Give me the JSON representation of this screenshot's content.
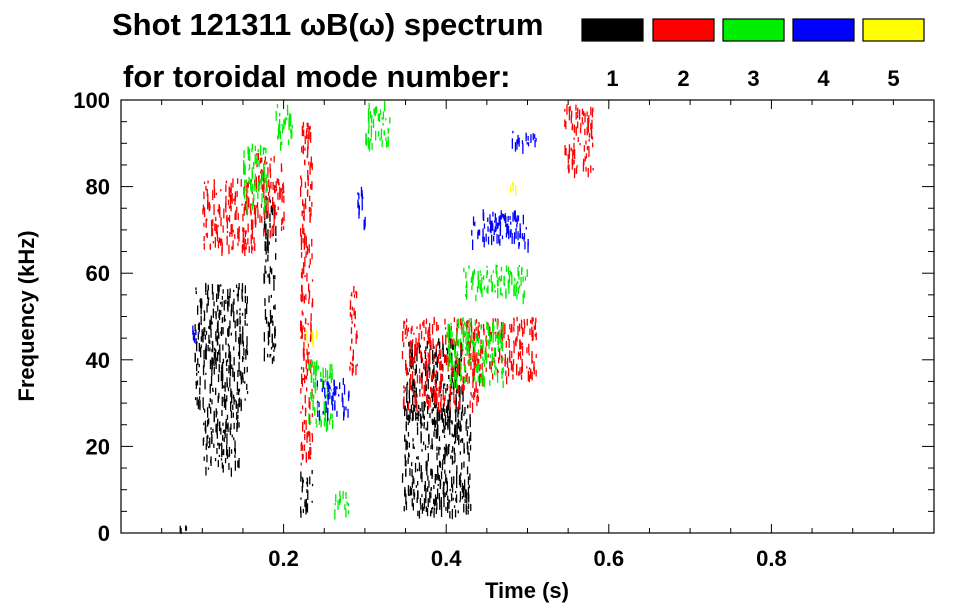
{
  "chart_data": {
    "type": "heatmap",
    "title_line1": "Shot 121311 ωB(ω) spectrum",
    "title_line2": "for toroidal mode number:",
    "xlabel": "Time (s)",
    "ylabel": "Frequency (kHz)",
    "xlim": [
      0.0,
      1.0
    ],
    "ylim": [
      0,
      100
    ],
    "x_ticks": [
      0.2,
      0.4,
      0.6,
      0.8
    ],
    "x_tick_labels": [
      "0.2",
      "0.4",
      "0.6",
      "0.8"
    ],
    "y_ticks": [
      0,
      20,
      40,
      60,
      80,
      100
    ],
    "y_tick_labels": [
      "0",
      "20",
      "40",
      "60",
      "80",
      "100"
    ],
    "grid": false,
    "legend": {
      "placement": "top-right",
      "entries": [
        {
          "label": "1",
          "color": "#000000"
        },
        {
          "label": "2",
          "color": "#ff0000"
        },
        {
          "label": "3",
          "color": "#00ee00"
        },
        {
          "label": "4",
          "color": "#0000ff"
        },
        {
          "label": "5",
          "color": "#ffff00"
        }
      ]
    },
    "series": [
      {
        "mode": "1",
        "color": "#000000",
        "regions": [
          {
            "t": [
              0.09,
              0.155
            ],
            "f": [
              30,
              58
            ]
          },
          {
            "t": [
              0.1,
              0.145
            ],
            "f": [
              15,
              30
            ]
          },
          {
            "t": [
              0.07,
              0.08
            ],
            "f": [
              0,
              2
            ]
          },
          {
            "t": [
              0.175,
              0.19
            ],
            "f": [
              40,
              78
            ]
          },
          {
            "t": [
              0.22,
              0.235
            ],
            "f": [
              5,
              15
            ]
          },
          {
            "t": [
              0.345,
              0.43
            ],
            "f": [
              5,
              30
            ]
          },
          {
            "t": [
              0.35,
              0.42
            ],
            "f": [
              25,
              45
            ]
          }
        ]
      },
      {
        "mode": "2",
        "color": "#ff0000",
        "regions": [
          {
            "t": [
              0.1,
              0.165
            ],
            "f": [
              66,
              82
            ]
          },
          {
            "t": [
              0.165,
              0.2
            ],
            "f": [
              70,
              88
            ]
          },
          {
            "t": [
              0.22,
              0.235
            ],
            "f": [
              15,
              95
            ]
          },
          {
            "t": [
              0.28,
              0.29
            ],
            "f": [
              38,
              58
            ]
          },
          {
            "t": [
              0.345,
              0.44
            ],
            "f": [
              30,
              50
            ]
          },
          {
            "t": [
              0.44,
              0.51
            ],
            "f": [
              36,
              50
            ]
          },
          {
            "t": [
              0.545,
              0.58
            ],
            "f": [
              84,
              99
            ]
          }
        ]
      },
      {
        "mode": "3",
        "color": "#00ee00",
        "regions": [
          {
            "t": [
              0.15,
              0.18
            ],
            "f": [
              75,
              90
            ]
          },
          {
            "t": [
              0.19,
              0.21
            ],
            "f": [
              90,
              100
            ]
          },
          {
            "t": [
              0.23,
              0.26
            ],
            "f": [
              25,
              40
            ]
          },
          {
            "t": [
              0.3,
              0.33
            ],
            "f": [
              90,
              100
            ]
          },
          {
            "t": [
              0.4,
              0.47
            ],
            "f": [
              35,
              50
            ]
          },
          {
            "t": [
              0.42,
              0.5
            ],
            "f": [
              55,
              62
            ]
          },
          {
            "t": [
              0.26,
              0.28
            ],
            "f": [
              5,
              10
            ]
          }
        ]
      },
      {
        "mode": "4",
        "color": "#0000ff",
        "regions": [
          {
            "t": [
              0.085,
              0.095
            ],
            "f": [
              44,
              48
            ]
          },
          {
            "t": [
              0.24,
              0.28
            ],
            "f": [
              28,
              36
            ]
          },
          {
            "t": [
              0.29,
              0.3
            ],
            "f": [
              70,
              80
            ]
          },
          {
            "t": [
              0.43,
              0.5
            ],
            "f": [
              67,
              75
            ]
          },
          {
            "t": [
              0.48,
              0.51
            ],
            "f": [
              89,
              93
            ]
          }
        ]
      },
      {
        "mode": "5",
        "color": "#ffff00",
        "regions": [
          {
            "t": [
              0.22,
              0.24
            ],
            "f": [
              44,
              47
            ]
          },
          {
            "t": [
              0.475,
              0.485
            ],
            "f": [
              80,
              82
            ]
          }
        ]
      }
    ]
  }
}
